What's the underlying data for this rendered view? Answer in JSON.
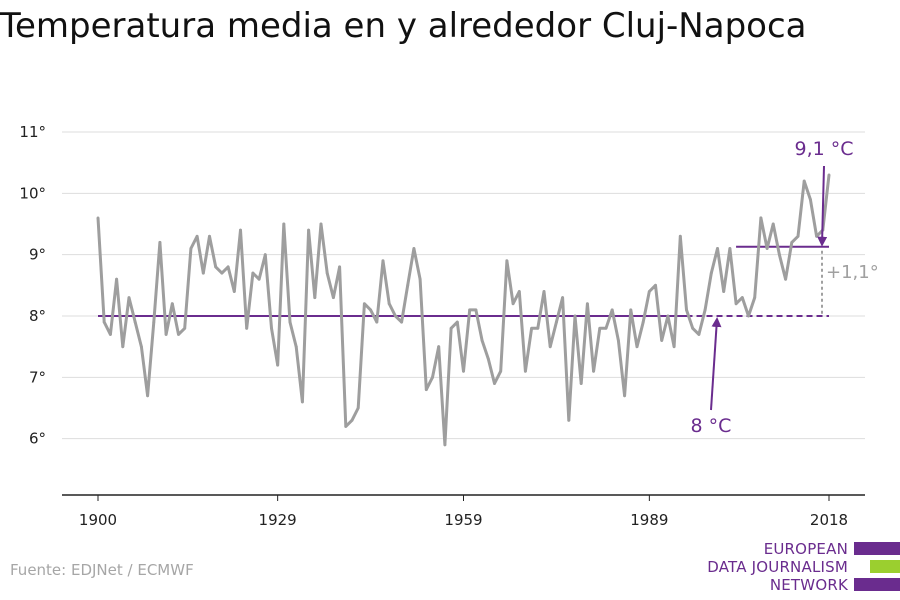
{
  "title": "Temperatura media en y alrededor Cluj-Napoca",
  "source": "Fuente: EDJNet / ECMWF",
  "logo": {
    "lines": [
      "EUROPEAN",
      "DATA JOURNALISM",
      "NETWORK"
    ],
    "colors": [
      "#6a2c8e",
      "#9bcf2f",
      "#6a2c8e"
    ]
  },
  "colors": {
    "series": "#9e9e9e",
    "accent": "#6a2c8e",
    "grid": "#dddddd",
    "diff": "#a0a0a0"
  },
  "chart_data": {
    "type": "line",
    "title": "Temperatura media en y alrededor Cluj-Napoca",
    "xlabel": "",
    "ylabel": "",
    "xlim": [
      1900,
      2018
    ],
    "ylim": [
      5,
      11
    ],
    "grid": true,
    "x_ticks": [
      1900,
      1929,
      1959,
      1989,
      2018
    ],
    "x_tick_labels": [
      "1900",
      "1929",
      "1959",
      "1989",
      "2018"
    ],
    "y_ticks": [
      6,
      7,
      8,
      9,
      10,
      11
    ],
    "y_tick_labels": [
      "6°",
      "7°",
      "8°",
      "9°",
      "10°",
      "11°"
    ],
    "series": [
      {
        "x": [
          1900,
          1901,
          1902,
          1903,
          1904,
          1905,
          1906,
          1907,
          1908,
          1909,
          1910,
          1911,
          1912,
          1913,
          1914,
          1915,
          1916,
          1917,
          1918,
          1919,
          1920,
          1921,
          1922,
          1923,
          1924,
          1925,
          1926,
          1927,
          1928,
          1929,
          1930,
          1931,
          1932,
          1933,
          1934,
          1935,
          1936,
          1937,
          1938,
          1939,
          1940,
          1941,
          1942,
          1943,
          1944,
          1945,
          1946,
          1947,
          1948,
          1949,
          1950,
          1951,
          1952,
          1953,
          1954,
          1955,
          1956,
          1957,
          1958,
          1959,
          1960,
          1961,
          1962,
          1963,
          1964,
          1965,
          1966,
          1967,
          1968,
          1969,
          1970,
          1971,
          1972,
          1973,
          1974,
          1975,
          1976,
          1977,
          1978,
          1979,
          1980,
          1981,
          1982,
          1983,
          1984,
          1985,
          1986,
          1987,
          1988,
          1989,
          1990,
          1991,
          1992,
          1993,
          1994,
          1995,
          1996,
          1997,
          1998,
          1999,
          2000,
          2001,
          2002,
          2003,
          2004,
          2005,
          2006,
          2007,
          2008,
          2009,
          2010,
          2011,
          2012,
          2013,
          2014,
          2015,
          2016,
          2017,
          2018
        ],
        "values": [
          9.6,
          7.9,
          7.7,
          8.6,
          7.5,
          8.3,
          7.9,
          7.5,
          6.7,
          7.9,
          9.2,
          7.7,
          8.2,
          7.7,
          7.8,
          9.1,
          9.3,
          8.7,
          9.3,
          8.8,
          8.7,
          8.8,
          8.4,
          9.4,
          7.8,
          8.7,
          8.6,
          9.0,
          7.8,
          7.2,
          9.5,
          7.9,
          7.5,
          6.6,
          9.4,
          8.3,
          9.5,
          8.7,
          8.3,
          8.8,
          6.2,
          6.3,
          6.5,
          8.2,
          8.1,
          7.9,
          8.9,
          8.2,
          8.0,
          7.9,
          8.5,
          9.1,
          8.6,
          6.8,
          7.0,
          7.5,
          5.9,
          7.8,
          7.9,
          7.1,
          8.1,
          8.1,
          7.6,
          7.3,
          6.9,
          7.1,
          8.9,
          8.2,
          8.4,
          7.1,
          7.8,
          7.8,
          8.4,
          7.5,
          7.9,
          8.3,
          6.3,
          8.0,
          6.9,
          8.2,
          7.1,
          7.8,
          7.8,
          8.1,
          7.6,
          6.7,
          8.1,
          7.5,
          7.9,
          8.4,
          8.5,
          7.6,
          8.0,
          7.5,
          9.3,
          8.1,
          7.8,
          7.7,
          8.1,
          8.7,
          9.1,
          8.4,
          9.1,
          8.2,
          8.3,
          8.0,
          8.3,
          9.6,
          9.1,
          9.5,
          9.0,
          8.6,
          9.2,
          9.3,
          10.2,
          9.9,
          9.3,
          9.4,
          10.3
        ]
      }
    ],
    "reference_lines": [
      {
        "label": "8 °C",
        "value": 8.0,
        "from": 1900,
        "to": 1995,
        "dashed_to": 2018
      },
      {
        "label": "9,1 °C",
        "value": 9.13,
        "from": 2003,
        "to": 2018
      }
    ],
    "annotations": {
      "baseline_label": "8 °C",
      "recent_label": "9,1 °C",
      "difference_label": "+1,1°"
    }
  }
}
